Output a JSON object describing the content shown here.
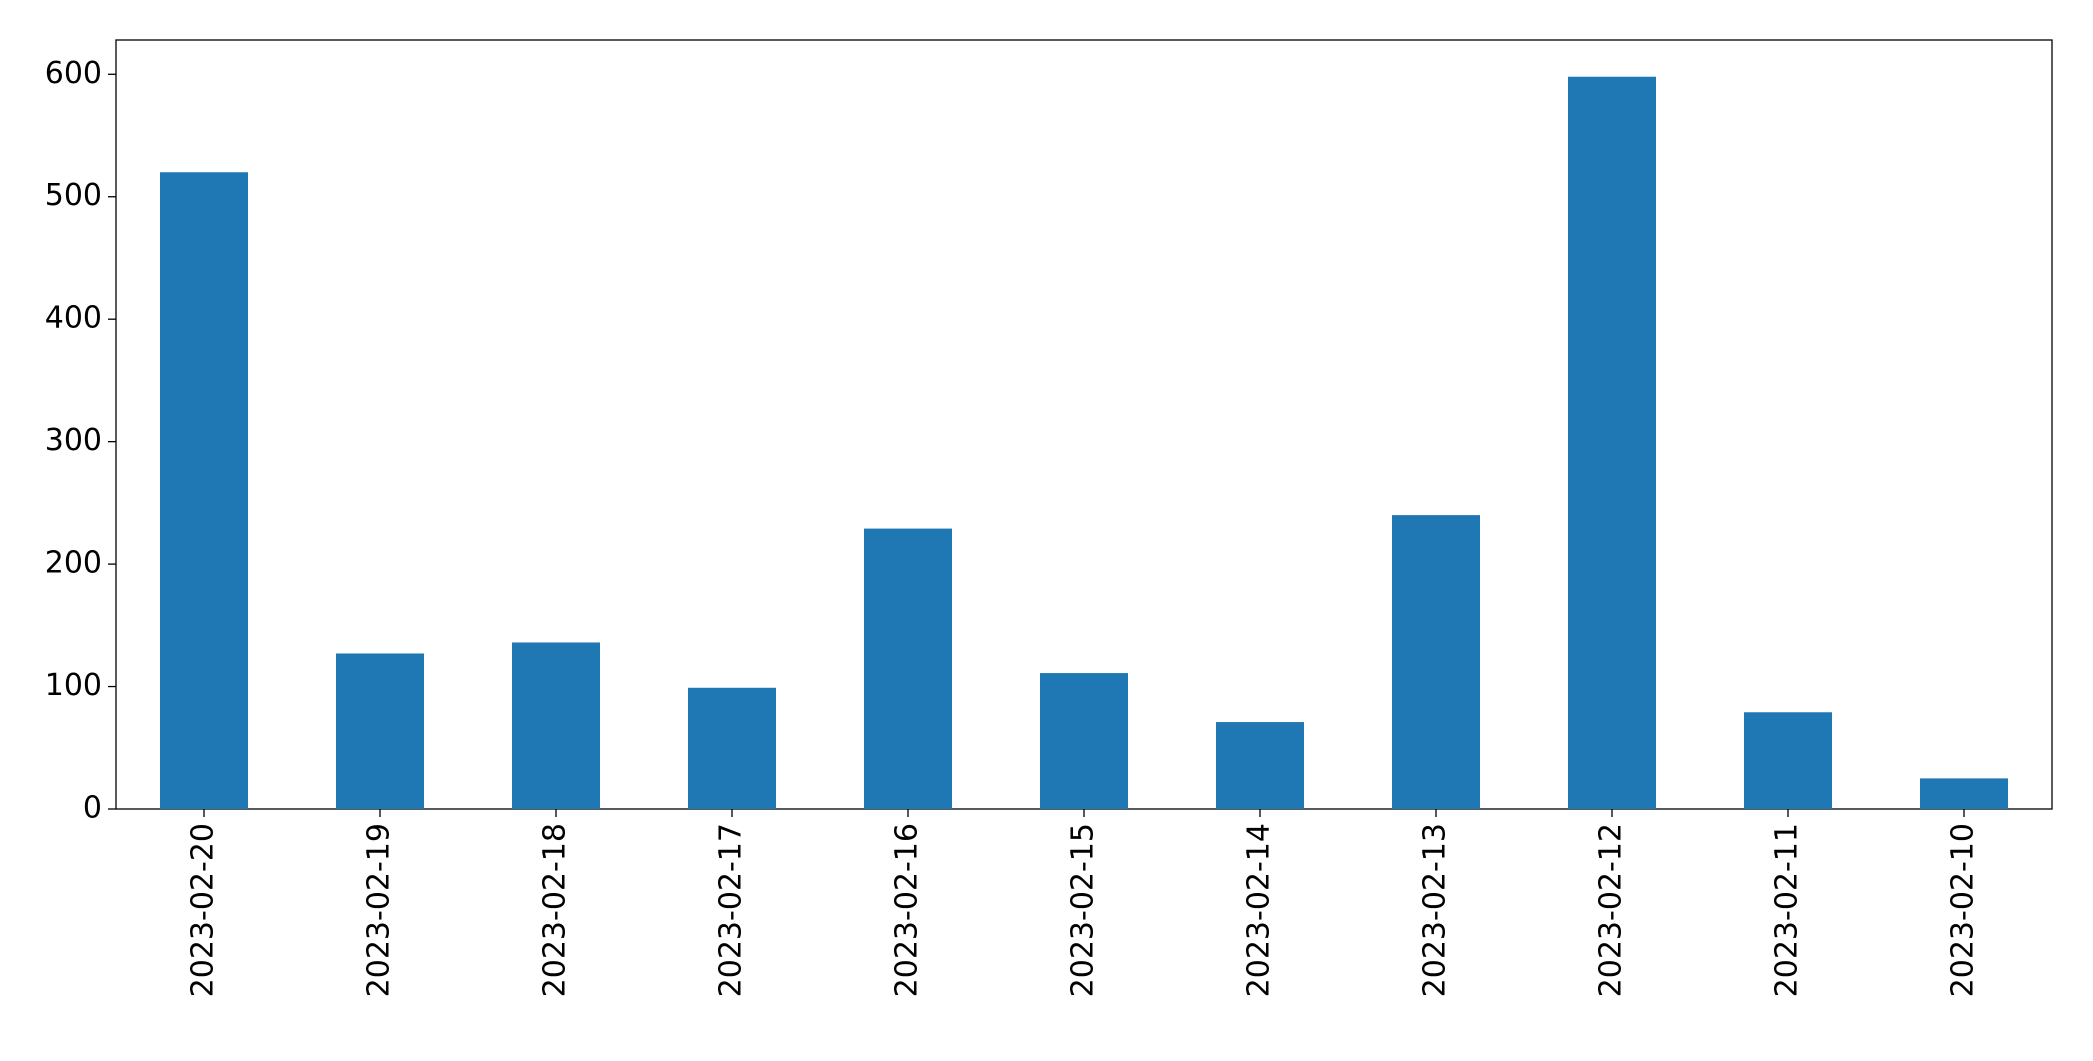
{
  "chart_data": {
    "type": "bar",
    "categories": [
      "2023-02-20",
      "2023-02-19",
      "2023-02-18",
      "2023-02-17",
      "2023-02-16",
      "2023-02-15",
      "2023-02-14",
      "2023-02-13",
      "2023-02-12",
      "2023-02-11",
      "2023-02-10"
    ],
    "values": [
      520,
      127,
      136,
      99,
      229,
      111,
      71,
      240,
      598,
      79,
      25
    ],
    "color": "#1f77b4",
    "ylim": [
      0,
      628
    ],
    "yticks": [
      0,
      100,
      200,
      300,
      400,
      500,
      600
    ],
    "grid": false
  }
}
